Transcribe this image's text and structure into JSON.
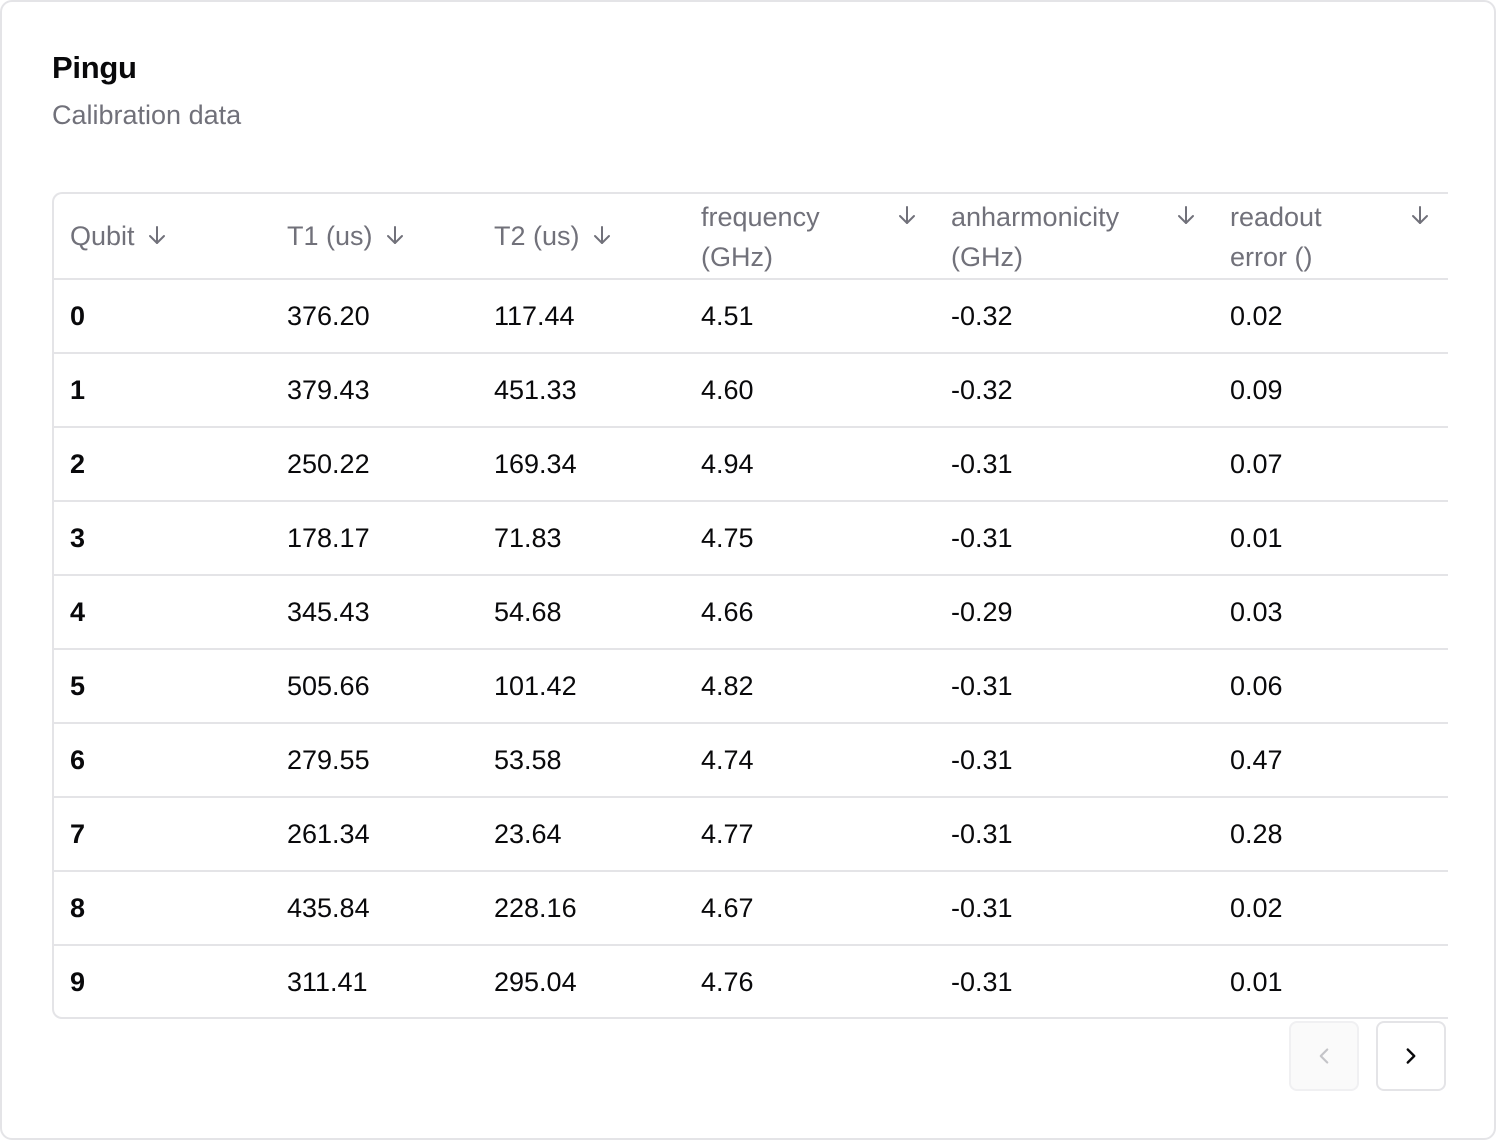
{
  "card": {
    "title": "Pingu",
    "subtitle": "Calibration data"
  },
  "table": {
    "columns": [
      {
        "label": "Qubit",
        "sort_icon": "arrow-down-icon"
      },
      {
        "label": "T1 (us)",
        "sort_icon": "arrow-down-icon"
      },
      {
        "label": "T2 (us)",
        "sort_icon": "arrow-down-icon"
      },
      {
        "label": "frequency (GHz)",
        "sort_icon": "arrow-down-icon"
      },
      {
        "label": "anharmonicity (GHz)",
        "sort_icon": "arrow-down-icon"
      },
      {
        "label": "readout error ()",
        "sort_icon": "arrow-down-icon"
      }
    ],
    "rows": [
      [
        "0",
        "376.20",
        "117.44",
        "4.51",
        "-0.32",
        "0.02"
      ],
      [
        "1",
        "379.43",
        "451.33",
        "4.60",
        "-0.32",
        "0.09"
      ],
      [
        "2",
        "250.22",
        "169.34",
        "4.94",
        "-0.31",
        "0.07"
      ],
      [
        "3",
        "178.17",
        "71.83",
        "4.75",
        "-0.31",
        "0.01"
      ],
      [
        "4",
        "345.43",
        "54.68",
        "4.66",
        "-0.29",
        "0.03"
      ],
      [
        "5",
        "505.66",
        "101.42",
        "4.82",
        "-0.31",
        "0.06"
      ],
      [
        "6",
        "279.55",
        "53.58",
        "4.74",
        "-0.31",
        "0.47"
      ],
      [
        "7",
        "261.34",
        "23.64",
        "4.77",
        "-0.31",
        "0.28"
      ],
      [
        "8",
        "435.84",
        "228.16",
        "4.67",
        "-0.31",
        "0.02"
      ],
      [
        "9",
        "311.41",
        "295.04",
        "4.76",
        "-0.31",
        "0.01"
      ]
    ]
  },
  "pagination": {
    "prev_icon": "chevron-left-icon",
    "next_icon": "chevron-right-icon",
    "prev_disabled": true
  },
  "colors": {
    "border": "#e4e4e7",
    "muted_text": "#71717a",
    "text": "#09090b"
  }
}
